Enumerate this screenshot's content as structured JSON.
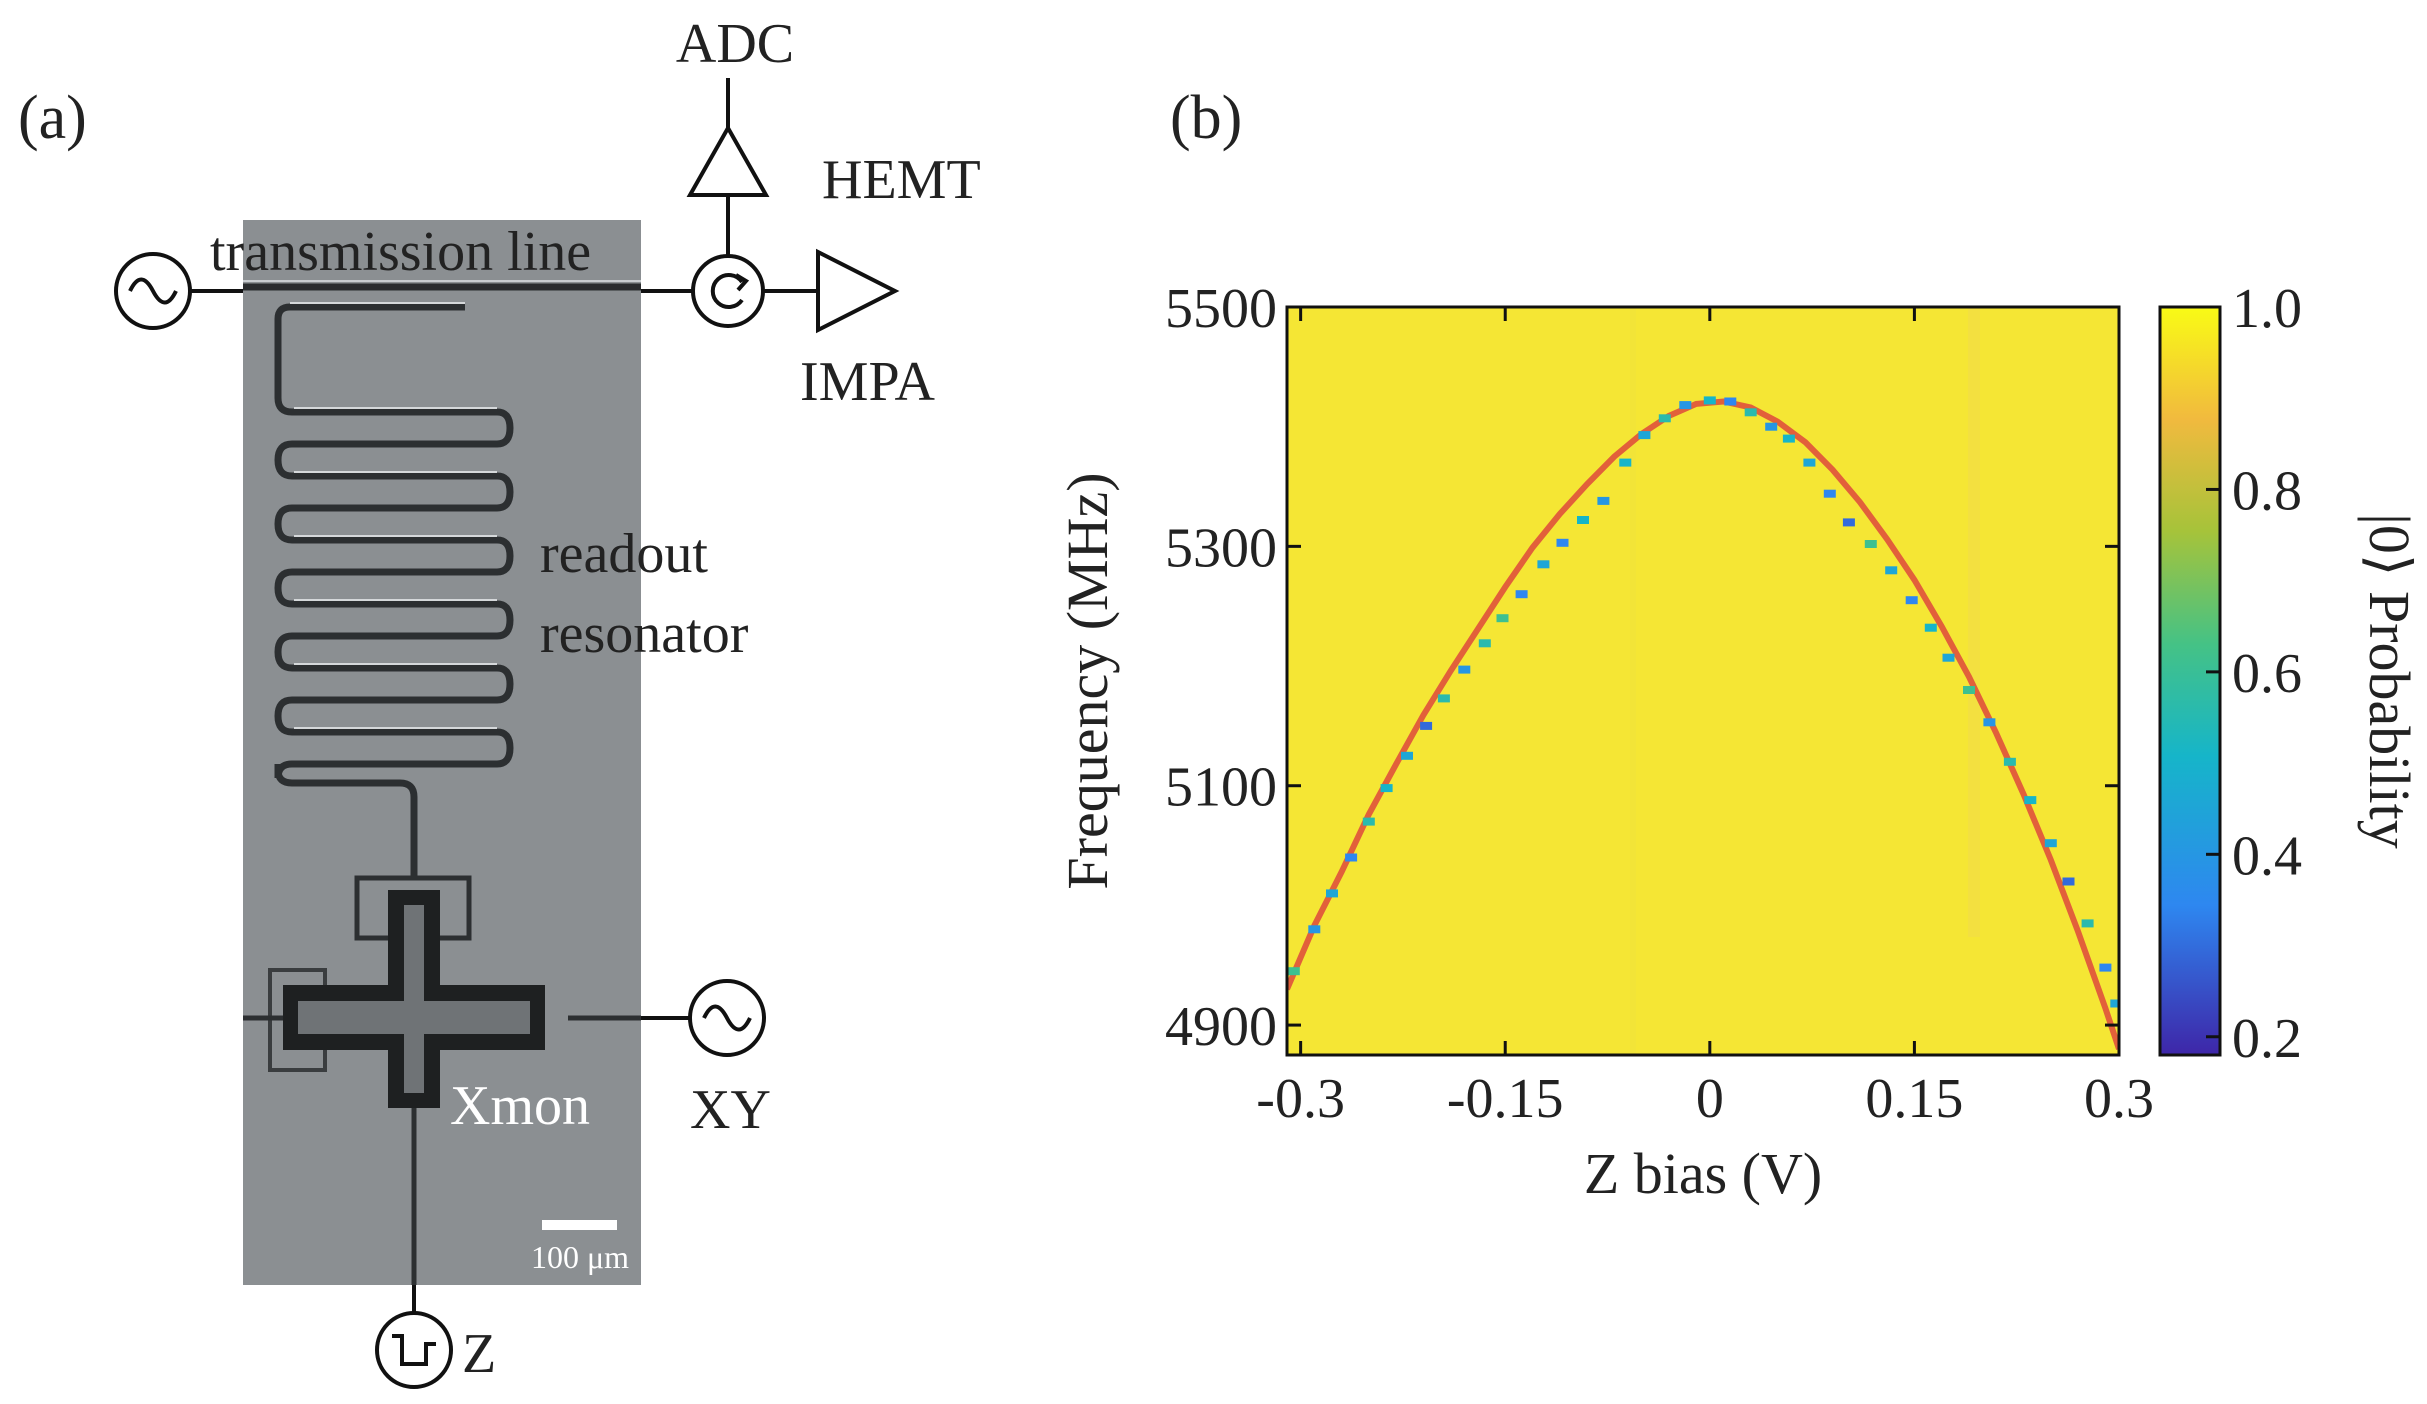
{
  "panels": {
    "a": {
      "label": "(a)",
      "labels": {
        "transmission_line": "transmission line",
        "readout_resonator_1": "readout",
        "readout_resonator_2": "resonator",
        "xmon": "Xmon",
        "adc": "ADC",
        "hemt": "HEMT",
        "impa": "IMPA",
        "xy": "XY",
        "z": "Z",
        "scale_bar": "100 μm"
      }
    },
    "b": {
      "label": "(b)"
    }
  },
  "colors": {
    "background_probability": "#F5E634",
    "fit_curve": "#E2603A",
    "colormap": [
      "#3E26A8",
      "#2E87F0",
      "#16B5C9",
      "#45C285",
      "#A6C33A",
      "#F1BA3E",
      "#F9FB15"
    ]
  },
  "chart_data": {
    "type": "heatmap",
    "xlabel": "Z bias (V)",
    "ylabel": "Frequency (MHz)",
    "colorbar_label": "|0⟩ Probability",
    "xlim": [
      -0.31,
      0.3
    ],
    "ylim": [
      4875,
      5500
    ],
    "xticks": [
      -0.3,
      -0.15,
      0,
      0.15,
      0.3
    ],
    "xtick_labels": [
      "-0.3",
      "-0.15",
      "0",
      "0.15",
      "0.3"
    ],
    "yticks": [
      4900,
      5100,
      5300,
      5500
    ],
    "ytick_labels": [
      "4900",
      "5100",
      "5300",
      "5500"
    ],
    "colorbar_range": [
      0.18,
      1.0
    ],
    "colorbar_ticks": [
      0.2,
      0.4,
      0.6,
      0.8,
      1.0
    ],
    "colorbar_tick_labels": [
      "0.2",
      "0.4",
      "0.6",
      "0.8",
      "1.0"
    ],
    "background_value": 0.98,
    "resonance_points": [
      {
        "x": -0.305,
        "y": 4945,
        "p": 0.6
      },
      {
        "x": -0.29,
        "y": 4980,
        "p": 0.4
      },
      {
        "x": -0.277,
        "y": 5010,
        "p": 0.45
      },
      {
        "x": -0.263,
        "y": 5040,
        "p": 0.35
      },
      {
        "x": -0.25,
        "y": 5070,
        "p": 0.55
      },
      {
        "x": -0.237,
        "y": 5098,
        "p": 0.5
      },
      {
        "x": -0.222,
        "y": 5125,
        "p": 0.45
      },
      {
        "x": -0.208,
        "y": 5150,
        "p": 0.3
      },
      {
        "x": -0.195,
        "y": 5173,
        "p": 0.55
      },
      {
        "x": -0.18,
        "y": 5197,
        "p": 0.4
      },
      {
        "x": -0.165,
        "y": 5219,
        "p": 0.55
      },
      {
        "x": -0.152,
        "y": 5240,
        "p": 0.6
      },
      {
        "x": -0.138,
        "y": 5260,
        "p": 0.35
      },
      {
        "x": -0.122,
        "y": 5285,
        "p": 0.45
      },
      {
        "x": -0.108,
        "y": 5303,
        "p": 0.35
      },
      {
        "x": -0.093,
        "y": 5322,
        "p": 0.5
      },
      {
        "x": -0.078,
        "y": 5338,
        "p": 0.4
      },
      {
        "x": -0.062,
        "y": 5370,
        "p": 0.5
      },
      {
        "x": -0.048,
        "y": 5393,
        "p": 0.45
      },
      {
        "x": -0.033,
        "y": 5407,
        "p": 0.55
      },
      {
        "x": -0.018,
        "y": 5418,
        "p": 0.4
      },
      {
        "x": 0.0,
        "y": 5422,
        "p": 0.5
      },
      {
        "x": 0.015,
        "y": 5421,
        "p": 0.35
      },
      {
        "x": 0.03,
        "y": 5412,
        "p": 0.55
      },
      {
        "x": 0.045,
        "y": 5400,
        "p": 0.4
      },
      {
        "x": 0.058,
        "y": 5390,
        "p": 0.5
      },
      {
        "x": 0.073,
        "y": 5370,
        "p": 0.45
      },
      {
        "x": 0.088,
        "y": 5344,
        "p": 0.35
      },
      {
        "x": 0.102,
        "y": 5320,
        "p": 0.3
      },
      {
        "x": 0.118,
        "y": 5302,
        "p": 0.6
      },
      {
        "x": 0.133,
        "y": 5280,
        "p": 0.45
      },
      {
        "x": 0.148,
        "y": 5255,
        "p": 0.35
      },
      {
        "x": 0.162,
        "y": 5232,
        "p": 0.5
      },
      {
        "x": 0.175,
        "y": 5207,
        "p": 0.45
      },
      {
        "x": 0.19,
        "y": 5180,
        "p": 0.6
      },
      {
        "x": 0.205,
        "y": 5153,
        "p": 0.4
      },
      {
        "x": 0.22,
        "y": 5120,
        "p": 0.55
      },
      {
        "x": 0.235,
        "y": 5088,
        "p": 0.5
      },
      {
        "x": 0.25,
        "y": 5052,
        "p": 0.45
      },
      {
        "x": 0.263,
        "y": 5020,
        "p": 0.3
      },
      {
        "x": 0.277,
        "y": 4985,
        "p": 0.55
      },
      {
        "x": 0.29,
        "y": 4948,
        "p": 0.35
      },
      {
        "x": 0.298,
        "y": 4918,
        "p": 0.45
      }
    ],
    "fit_curve": {
      "x": [
        -0.31,
        -0.29,
        -0.27,
        -0.25,
        -0.23,
        -0.21,
        -0.19,
        -0.17,
        -0.15,
        -0.13,
        -0.11,
        -0.09,
        -0.07,
        -0.05,
        -0.03,
        -0.01,
        0.01,
        0.03,
        0.05,
        0.07,
        0.09,
        0.11,
        0.13,
        0.15,
        0.17,
        0.19,
        0.21,
        0.23,
        0.25,
        0.27,
        0.29,
        0.3
      ],
      "y": [
        4930,
        4983,
        5028,
        5076,
        5118,
        5159,
        5196,
        5231,
        5266,
        5299,
        5327,
        5352,
        5375,
        5394,
        5409,
        5419,
        5421,
        5416,
        5404,
        5387,
        5364,
        5337,
        5306,
        5272,
        5233,
        5191,
        5144,
        5093,
        5038,
        4978,
        4914,
        4880
      ]
    }
  }
}
